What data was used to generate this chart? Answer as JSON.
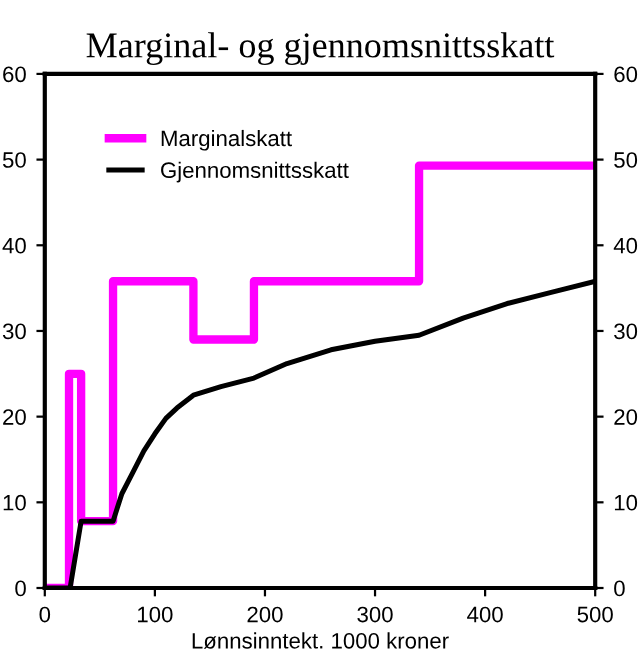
{
  "chart_data": {
    "type": "line",
    "title": "Marginal- og gjennomsnittsskatt",
    "xlabel": "Lønnsinntekt. 1000 kroner",
    "xlim": [
      0,
      500
    ],
    "xticks": [
      0,
      100,
      200,
      300,
      400,
      500
    ],
    "ylim": [
      0,
      60
    ],
    "yticks": [
      0,
      10,
      20,
      30,
      40,
      50,
      60
    ],
    "y2lim": [
      0,
      60
    ],
    "y2ticks": [
      0,
      10,
      20,
      30,
      40,
      50,
      60
    ],
    "legend": "top left",
    "grid": false,
    "series": [
      {
        "name": "Marginalskatt",
        "type": "step",
        "color": "#ff00ff",
        "x": [
          0,
          22,
          33,
          62,
          135,
          190,
          340,
          500
        ],
        "values": [
          0,
          25,
          7.8,
          35.8,
          29,
          35.8,
          49.3,
          49.3
        ]
      },
      {
        "name": "Gjennomsnittsskatt",
        "color": "#000000",
        "x": [
          0,
          23,
          33,
          62,
          70,
          80,
          90,
          100,
          110,
          120,
          135,
          160,
          190,
          220,
          260,
          300,
          340,
          380,
          420,
          460,
          500
        ],
        "values": [
          0,
          0,
          7.8,
          7.8,
          11,
          13.5,
          16,
          18,
          19.8,
          21,
          22.5,
          23.5,
          24.5,
          26.2,
          27.8,
          28.8,
          29.5,
          31.5,
          33.2,
          34.5,
          35.8
        ]
      }
    ]
  }
}
